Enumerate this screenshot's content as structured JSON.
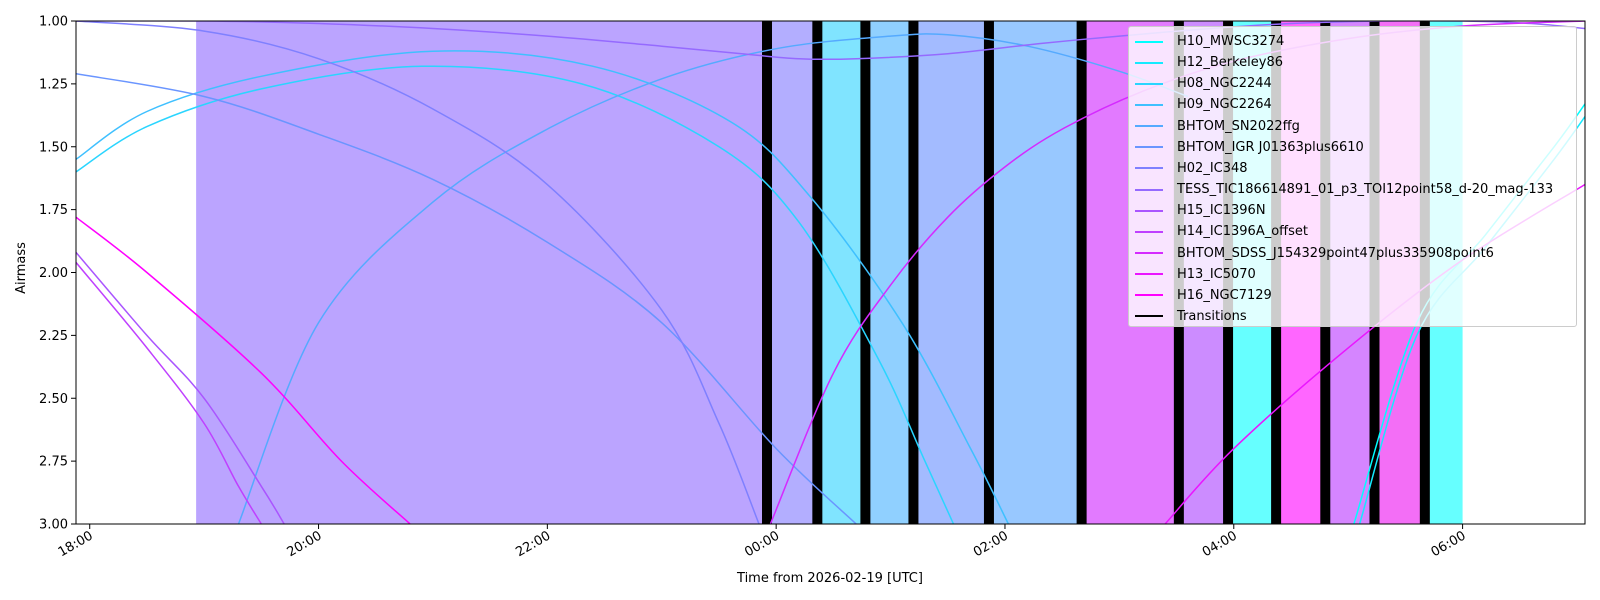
{
  "chart_data": {
    "type": "line",
    "title": "",
    "xlabel": "Time from 2026-02-19 [UTC]",
    "ylabel": "Airmass",
    "xlim_hours": [
      17.88,
      31.07
    ],
    "ylim": [
      3.0,
      1.0
    ],
    "y_inverted": true,
    "x_ticks": [
      {
        "hour": 18,
        "label": "18:00"
      },
      {
        "hour": 20,
        "label": "20:00"
      },
      {
        "hour": 22,
        "label": "22:00"
      },
      {
        "hour": 24,
        "label": "00:00"
      },
      {
        "hour": 26,
        "label": "02:00"
      },
      {
        "hour": 28,
        "label": "04:00"
      },
      {
        "hour": 30,
        "label": "06:00"
      }
    ],
    "y_ticks": [
      {
        "value": 1.0,
        "label": "1.00"
      },
      {
        "value": 1.25,
        "label": "1.25"
      },
      {
        "value": 1.5,
        "label": "1.50"
      },
      {
        "value": 1.75,
        "label": "1.75"
      },
      {
        "value": 2.0,
        "label": "2.00"
      },
      {
        "value": 2.25,
        "label": "2.25"
      },
      {
        "value": 2.5,
        "label": "2.50"
      },
      {
        "value": 2.75,
        "label": "2.75"
      },
      {
        "value": 3.0,
        "label": "3.00"
      }
    ],
    "grid": false,
    "legend_position": "top-right",
    "series": [
      {
        "name": "H10_MWSC3274",
        "color": "#00ffff",
        "x": [
          29.05,
          29.6,
          30.2,
          30.8,
          31.07
        ],
        "y": [
          3.0,
          2.2,
          1.85,
          1.5,
          1.33
        ]
      },
      {
        "name": "H12_Berkeley86",
        "color": "#15eaff",
        "x": [
          29.1,
          29.6,
          30.2,
          30.8,
          31.07
        ],
        "y": [
          3.0,
          2.25,
          1.9,
          1.55,
          1.38
        ]
      },
      {
        "name": "H08_NGC2244",
        "color": "#2ad5ff",
        "x": [
          17.88,
          18.5,
          19.5,
          20.9,
          22.3,
          23.5,
          24.2,
          24.9,
          25.3,
          25.55
        ],
        "y": [
          1.6,
          1.42,
          1.27,
          1.18,
          1.25,
          1.5,
          1.8,
          2.35,
          2.75,
          3.0
        ]
      },
      {
        "name": "H09_NGC2264",
        "color": "#3fc0ff",
        "x": [
          17.88,
          18.5,
          19.5,
          21.0,
          22.4,
          23.6,
          24.3,
          25.1,
          25.7,
          26.03
        ],
        "y": [
          1.55,
          1.36,
          1.22,
          1.12,
          1.18,
          1.4,
          1.7,
          2.2,
          2.7,
          3.0
        ]
      },
      {
        "name": "BHTOM_SN2022ffg",
        "color": "#55aaff",
        "x": [
          19.3,
          20.0,
          21.0,
          22.0,
          23.0,
          24.0,
          25.0,
          25.5,
          26.2,
          27.0,
          27.6
        ],
        "y": [
          3.0,
          2.2,
          1.72,
          1.43,
          1.23,
          1.11,
          1.06,
          1.055,
          1.1,
          1.2,
          1.3
        ]
      },
      {
        "name": "BHTOM_IGR J01363plus6610",
        "color": "#6a95ff",
        "x": [
          17.88,
          19.0,
          20.0,
          21.0,
          22.0,
          23.0,
          24.0,
          24.7
        ],
        "y": [
          1.21,
          1.3,
          1.45,
          1.63,
          1.88,
          2.2,
          2.7,
          3.0
        ]
      },
      {
        "name": "H02_IC348",
        "color": "#7f80ff",
        "x": [
          17.88,
          19.0,
          20.0,
          21.0,
          22.0,
          23.0,
          23.5,
          23.85
        ],
        "y": [
          1.0,
          1.04,
          1.15,
          1.35,
          1.65,
          2.15,
          2.6,
          3.0
        ]
      },
      {
        "name": "TESS_TIC186614891_01_p3_TOI12point58_d-20_mag-133",
        "color": "#956aff",
        "x": [
          17.88,
          19.0,
          20.0,
          21.0,
          22.0,
          23.0,
          23.7,
          24.2,
          24.7,
          25.5,
          26.3,
          27.0,
          27.8,
          28.5,
          29.3,
          30.0,
          30.6,
          31.07
        ],
        "y": [
          1.0,
          1.0,
          1.01,
          1.03,
          1.06,
          1.1,
          1.13,
          1.15,
          1.15,
          1.13,
          1.09,
          1.06,
          1.03,
          1.01,
          1.0,
          1.0,
          1.01,
          1.03
        ]
      },
      {
        "name": "H15_IC1396N",
        "color": "#aa55ff",
        "x": [
          17.88,
          18.5,
          19.0,
          19.5,
          19.7
        ],
        "y": [
          1.92,
          2.25,
          2.5,
          2.85,
          3.0
        ]
      },
      {
        "name": "H14_IC1396A_offset",
        "color": "#bf40ff",
        "x": [
          17.88,
          18.5,
          19.0,
          19.3,
          19.5
        ],
        "y": [
          1.96,
          2.3,
          2.6,
          2.85,
          3.0
        ]
      },
      {
        "name": "BHTOM_SDSS_J154329point47plus335908point6",
        "color": "#d52aff",
        "x": [
          23.95,
          24.5,
          25.0,
          25.5,
          26.0,
          26.5,
          27.2,
          28.0,
          29.0,
          30.0,
          31.07
        ],
        "y": [
          3.0,
          2.4,
          2.05,
          1.78,
          1.58,
          1.43,
          1.28,
          1.16,
          1.07,
          1.02,
          1.0
        ]
      },
      {
        "name": "H13_IC5070",
        "color": "#ea15ff",
        "x": [
          27.4,
          28.0,
          29.0,
          30.0,
          31.07
        ],
        "y": [
          3.0,
          2.7,
          2.3,
          1.95,
          1.65
        ]
      },
      {
        "name": "H16_NGC7129",
        "color": "#ff00ff",
        "x": [
          17.88,
          18.5,
          19.5,
          20.2,
          20.8
        ],
        "y": [
          1.78,
          2.0,
          2.4,
          2.75,
          3.0
        ]
      }
    ],
    "transitions": {
      "name": "Transitions",
      "color": "#000000",
      "hours": [
        23.92,
        24.36,
        24.78,
        25.2,
        25.86,
        26.67,
        27.52,
        27.95,
        28.37,
        28.8,
        29.23,
        29.67
      ]
    },
    "windows": [
      {
        "start": 18.93,
        "end": 23.92,
        "color": "#bba4ff"
      },
      {
        "start": 23.92,
        "end": 24.36,
        "color": "#b3aeff"
      },
      {
        "start": 24.36,
        "end": 24.78,
        "color": "#80e4ff"
      },
      {
        "start": 24.78,
        "end": 25.2,
        "color": "#90d0ff"
      },
      {
        "start": 25.2,
        "end": 25.86,
        "color": "#a3bbff"
      },
      {
        "start": 25.86,
        "end": 26.67,
        "color": "#98c8ff"
      },
      {
        "start": 26.67,
        "end": 27.52,
        "color": "#e27aff"
      },
      {
        "start": 27.52,
        "end": 27.95,
        "color": "#cc8cff"
      },
      {
        "start": 27.95,
        "end": 28.37,
        "color": "#66ffff"
      },
      {
        "start": 28.37,
        "end": 28.8,
        "color": "#ff66ff"
      },
      {
        "start": 28.8,
        "end": 29.23,
        "color": "#d585ff"
      },
      {
        "start": 29.23,
        "end": 29.67,
        "color": "#f36ef6"
      },
      {
        "start": 29.67,
        "end": 30.0,
        "color": "#66ffff"
      }
    ]
  }
}
